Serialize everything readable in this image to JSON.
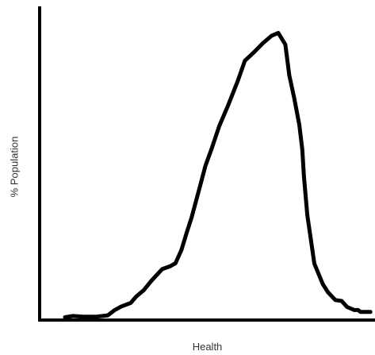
{
  "chart_data": {
    "type": "line",
    "title": "",
    "xlabel": "Health",
    "ylabel": "% Population",
    "xlim": [
      0,
      100
    ],
    "ylim": [
      0,
      100
    ],
    "grid": false,
    "legend": "none",
    "tick_labels": false,
    "line_color": "#000000",
    "axis_color": "#000000",
    "series": [
      {
        "x": [
          7.6,
          10,
          13,
          17,
          20.4,
          22.5,
          24.4,
          27.3,
          28.9,
          31.2,
          33.5,
          36.7,
          39,
          40.7,
          42.5,
          44.1,
          45.5,
          47.6,
          49.7,
          51.6,
          53.8,
          56.5,
          59.3,
          61.5,
          64.1,
          66.9,
          69.5,
          71.5,
          73.6,
          74.8,
          76.3,
          77.8,
          78.7,
          79.2,
          80.2,
          82.3,
          84.8,
          86.4,
          88.6,
          90.5,
          92.1,
          94.3,
          95.4,
          96.2,
          97.9,
          99.1
        ],
        "y": [
          0.9,
          1.3,
          1.1,
          1.1,
          1.5,
          3.2,
          4.3,
          5.5,
          7.5,
          9.6,
          12.6,
          16.3,
          17.2,
          18.2,
          22.5,
          28.2,
          32.8,
          41.1,
          49.5,
          55.1,
          62.1,
          68.9,
          76.5,
          83.1,
          85.7,
          88.7,
          91.1,
          92,
          88.3,
          78.4,
          71,
          62.6,
          54.6,
          45.9,
          33.7,
          18.1,
          11.6,
          8.9,
          6.4,
          6.1,
          4.2,
          3.2,
          3.2,
          2.6,
          2.6,
          2.6
        ]
      }
    ]
  }
}
